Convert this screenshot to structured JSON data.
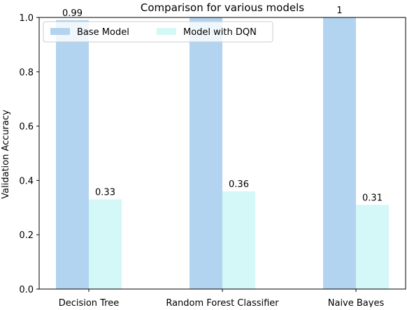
{
  "chart_data": {
    "type": "bar",
    "title": "Comparison for various models",
    "xlabel": "",
    "ylabel": "Validation Accuracy",
    "categories": [
      "Decision Tree",
      "Random Forest Classifier",
      "Naive Bayes"
    ],
    "series": [
      {
        "name": "Base Model",
        "values": [
          0.99,
          1.0,
          1.0
        ],
        "labels": [
          "0.99",
          "",
          "1"
        ],
        "color": "#b3d4f0"
      },
      {
        "name": "Model with DQN",
        "values": [
          0.33,
          0.36,
          0.31
        ],
        "labels": [
          "0.33",
          "0.36",
          "0.31"
        ],
        "color": "#d4f8f8"
      }
    ],
    "ylim": [
      0,
      1.0
    ],
    "yticks": [
      "0.0",
      "0.2",
      "0.4",
      "0.6",
      "0.8",
      "1.0"
    ],
    "grid": false,
    "legend": "top-left"
  }
}
